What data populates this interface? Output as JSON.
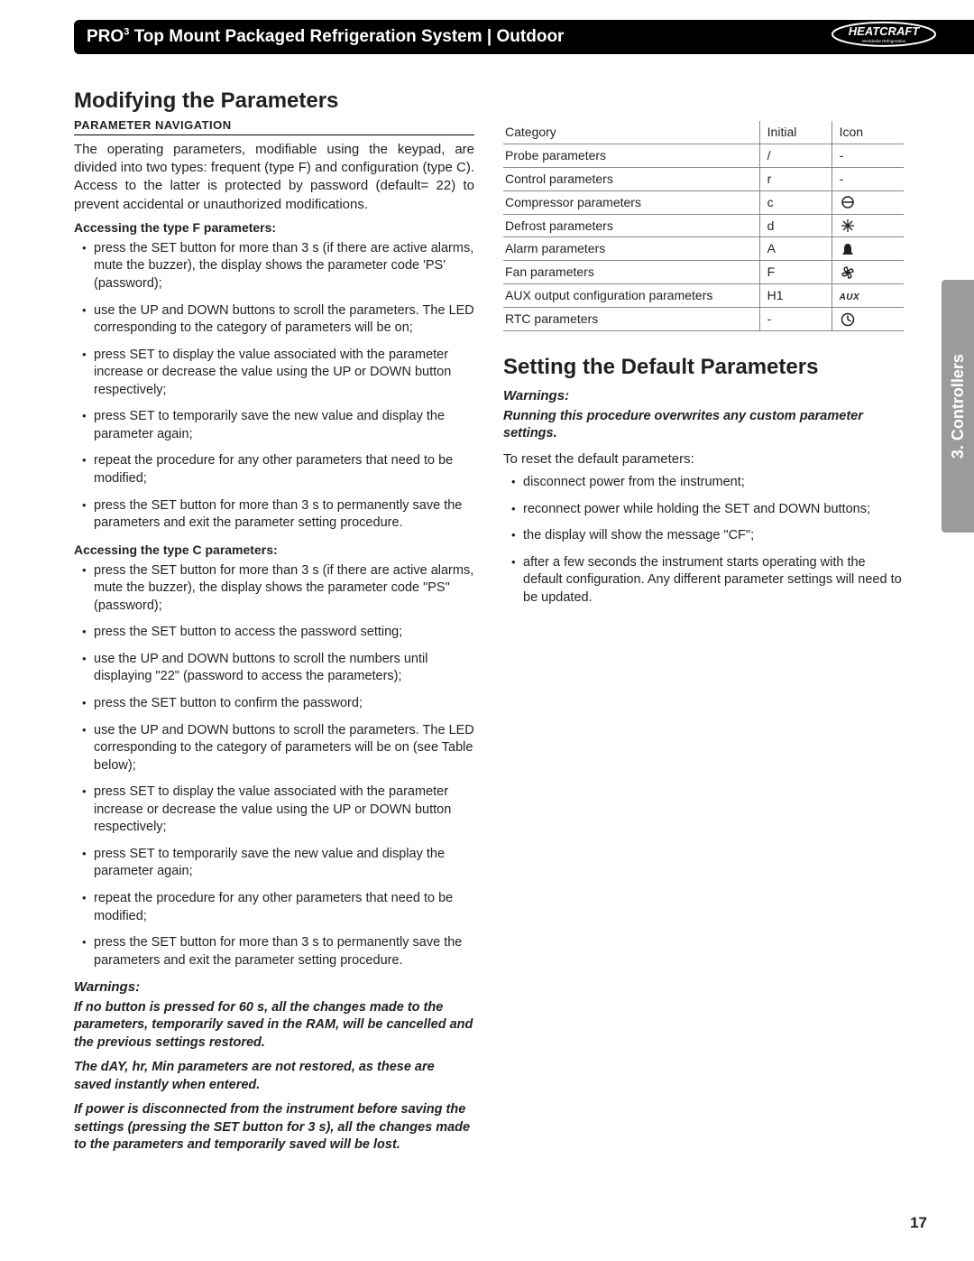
{
  "header": {
    "title_pre": "PRO",
    "title_sup": "3",
    "title_rest": " Top Mount Packaged Refrigeration System | Outdoor",
    "brand_top": "HEATCRAFT",
    "brand_sub": "Worldwide Refrigeration"
  },
  "side_tab": "3. Controllers",
  "page_number": "17",
  "left": {
    "h1": "Modifying the Parameters",
    "nav_heading": "PARAMETER NAVIGATION",
    "intro": "The operating parameters, modifiable using the keypad, are divided into two types: frequent (type F) and configuration (type C). Access to the latter is protected by password (default= 22) to prevent accidental or unauthorized modifications.",
    "typeF_heading": "Accessing the type F parameters:",
    "typeF_items": [
      "press the SET button for more than 3 s (if there are active alarms, mute the buzzer), the display shows the parameter code 'PS' (password);",
      "use the UP and DOWN buttons to scroll the parameters. The LED corresponding to the category of parameters will be on;",
      "press SET to display the value associated with the parameter increase or decrease the value using the UP or DOWN button respectively;",
      "press SET to temporarily save the new value and display the parameter again;",
      "repeat the procedure for any other parameters that need to be modified;",
      "press the SET button for more than 3 s to permanently save the parameters and exit the parameter setting procedure."
    ],
    "typeC_heading": "Accessing the type C parameters:",
    "typeC_items": [
      "press the SET button for more than 3 s (if there are active alarms, mute the buzzer), the display shows the parameter code \"PS\" (password);",
      "press the SET button to access the password setting;",
      "use the UP and DOWN buttons to scroll the numbers until displaying \"22\" (password to access the parameters);",
      "press the SET button to confirm the password;",
      "use the UP and DOWN buttons to scroll the parameters. The LED corresponding to the category of parameters will be on (see Table below);",
      "press SET to display the value associated with the parameter increase or decrease the value using the UP or DOWN button respectively;",
      "press SET to temporarily save the new value and display the parameter again;",
      "repeat the procedure for any other parameters that need to be modified;",
      "press the SET button for more than 3 s to permanently save the parameters and exit the parameter setting procedure."
    ],
    "warnings_label": "Warnings:",
    "warnings": [
      "If no button is pressed for 60 s, all the changes made to the parameters, temporarily saved in the RAM, will be cancelled and the previous settings restored.",
      "The dAY, hr, Min parameters are not restored, as these are saved instantly when entered.",
      "If power is disconnected from the instrument before saving the settings (pressing the SET button for 3 s), all the changes made to the parameters and temporarily saved will be lost."
    ]
  },
  "right": {
    "table": {
      "headers": [
        "Category",
        "Initial",
        "Icon"
      ],
      "rows": [
        {
          "cat": "Probe parameters",
          "init": "/",
          "icon": "dash"
        },
        {
          "cat": "Control parameters",
          "init": "r",
          "icon": "dash"
        },
        {
          "cat": "Compressor parameters",
          "init": "c",
          "icon": "compressor"
        },
        {
          "cat": "Defrost parameters",
          "init": "d",
          "icon": "defrost"
        },
        {
          "cat": "Alarm parameters",
          "init": "A",
          "icon": "alarm"
        },
        {
          "cat": "Fan parameters",
          "init": "F",
          "icon": "fan"
        },
        {
          "cat": "AUX output configuration parameters",
          "init": "H1",
          "icon": "aux"
        },
        {
          "cat": "RTC parameters",
          "init": "-",
          "icon": "clock"
        }
      ]
    },
    "h1": "Setting the Default Parameters",
    "warnings_label": "Warnings:",
    "warning_line": "Running this procedure overwrites any custom parameter settings.",
    "reset_intro": "To reset the default parameters:",
    "reset_items": [
      "disconnect power from the instrument;",
      "reconnect power while holding the SET and DOWN buttons;",
      "the display will show the message \"CF\";",
      "after a few seconds the instrument starts operating with the default configuration. Any different parameter settings will need to be updated."
    ]
  },
  "icons": {
    "dash": "-",
    "aux_text": "AUX"
  }
}
